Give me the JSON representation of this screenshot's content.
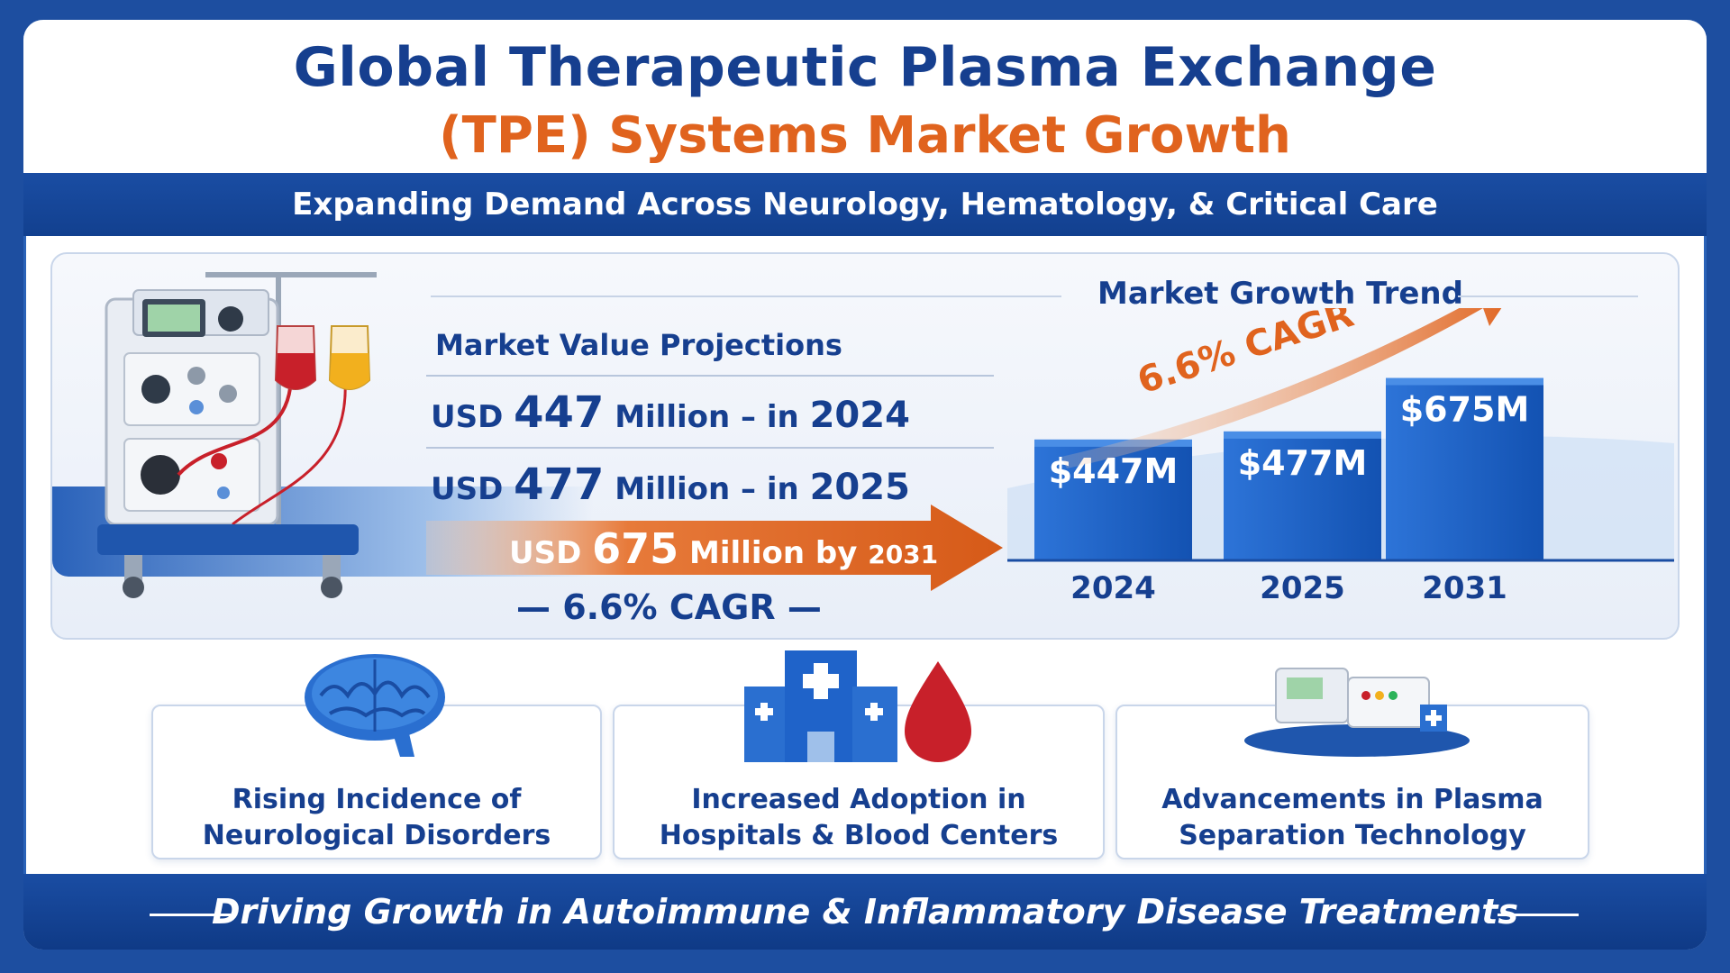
{
  "title": {
    "line1": "Global Therapeutic Plasma Exchange",
    "line2": "(TPE) Systems Market Growth"
  },
  "subtitle": "Expanding Demand Across Neurology, Hematology, & Critical Care",
  "projections": {
    "heading": "Market Value Projections",
    "rows": [
      {
        "prefix": "USD ",
        "value": "447",
        "suffix": " Million – in ",
        "year": "2024"
      },
      {
        "prefix": "USD ",
        "value": "477",
        "suffix": " Million – in ",
        "year": "2025"
      }
    ],
    "banner": {
      "prefix": "USD ",
      "value": "675",
      "suffix": " Million by ",
      "year": "2031"
    },
    "cagr": "— 6.6% CAGR —"
  },
  "chart_data": {
    "type": "bar",
    "title": "Market Growth Trend",
    "categories": [
      "2024",
      "2025",
      "2031"
    ],
    "values": [
      447,
      477,
      675
    ],
    "value_labels": [
      "$447M",
      "$477M",
      "$675M"
    ],
    "annotation": "6.6% CAGR",
    "xlabel": "",
    "ylabel": "",
    "grid": false,
    "legend": "none",
    "colors": {
      "bar": "#1f63c9",
      "bar_dark": "#134a9e",
      "arrow": "#e0631e"
    }
  },
  "drivers": [
    {
      "line1": "Rising Incidence of",
      "line2": "Neurological Disorders",
      "icon": "brain-icon"
    },
    {
      "line1": "Increased Adoption in",
      "line2": "Hospitals & Blood Centers",
      "icon": "hospital-icon"
    },
    {
      "line1": "Advancements in Plasma",
      "line2": "Separation Technology",
      "icon": "plasma-machine-icon"
    }
  ],
  "footer": "Driving Growth in Autoimmune & Inflammatory Disease Treatments",
  "colors": {
    "navy": "#163f8f",
    "orange": "#e0631e",
    "blue": "#1a4da3",
    "red": "#c8202a",
    "yellow": "#f2b01e"
  }
}
